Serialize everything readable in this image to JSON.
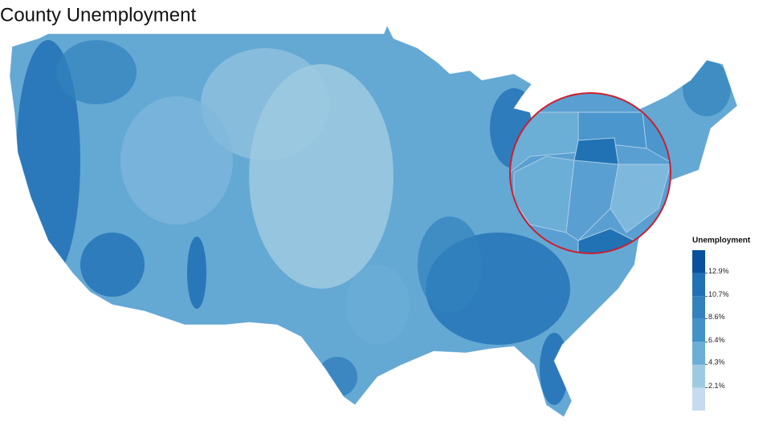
{
  "title": "County Unemployment",
  "legend": {
    "title": "Unemployment",
    "colors": [
      "#c6dbef",
      "#9ecae1",
      "#6baed6",
      "#4292c6",
      "#3182bd",
      "#2171b5",
      "#08519c"
    ],
    "ticks": [
      {
        "value": 2.1,
        "label": "2.1%"
      },
      {
        "value": 4.3,
        "label": "4.3%"
      },
      {
        "value": 6.4,
        "label": "6.4%"
      },
      {
        "value": 8.6,
        "label": "8.6%"
      },
      {
        "value": 10.7,
        "label": "10.7%"
      },
      {
        "value": 12.9,
        "label": "12.9%"
      }
    ]
  }
}
